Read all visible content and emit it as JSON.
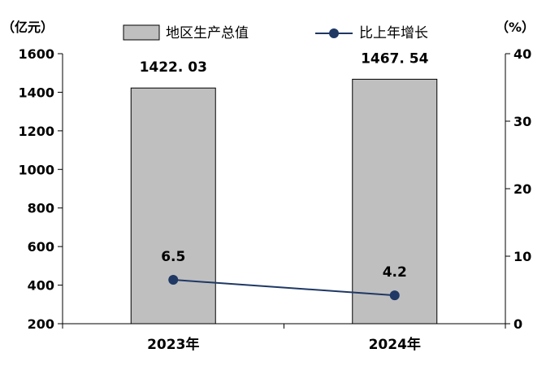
{
  "chart_data": {
    "type": "bar",
    "categories": [
      "2023年",
      "2024年"
    ],
    "series": [
      {
        "name": "地区生产总值",
        "type": "bar",
        "axis": "left",
        "values": [
          1422.03,
          1467.54
        ],
        "labels": [
          "1422. 03",
          "1467. 54"
        ],
        "color": "#bfbfbf"
      },
      {
        "name": "比上年增长",
        "type": "line",
        "axis": "right",
        "values": [
          6.5,
          4.2
        ],
        "labels": [
          "6.5",
          "4.2"
        ],
        "color": "#1f3864"
      }
    ],
    "y_left": {
      "unit": "（亿元）",
      "lim": [
        200,
        1600
      ],
      "ticks": [
        200,
        400,
        600,
        800,
        1000,
        1200,
        1400,
        1600
      ]
    },
    "y_right": {
      "unit": "（%）",
      "lim": [
        0,
        40
      ],
      "ticks": [
        0,
        10,
        20,
        30,
        40
      ]
    },
    "legend_position": "top",
    "grid": false
  }
}
